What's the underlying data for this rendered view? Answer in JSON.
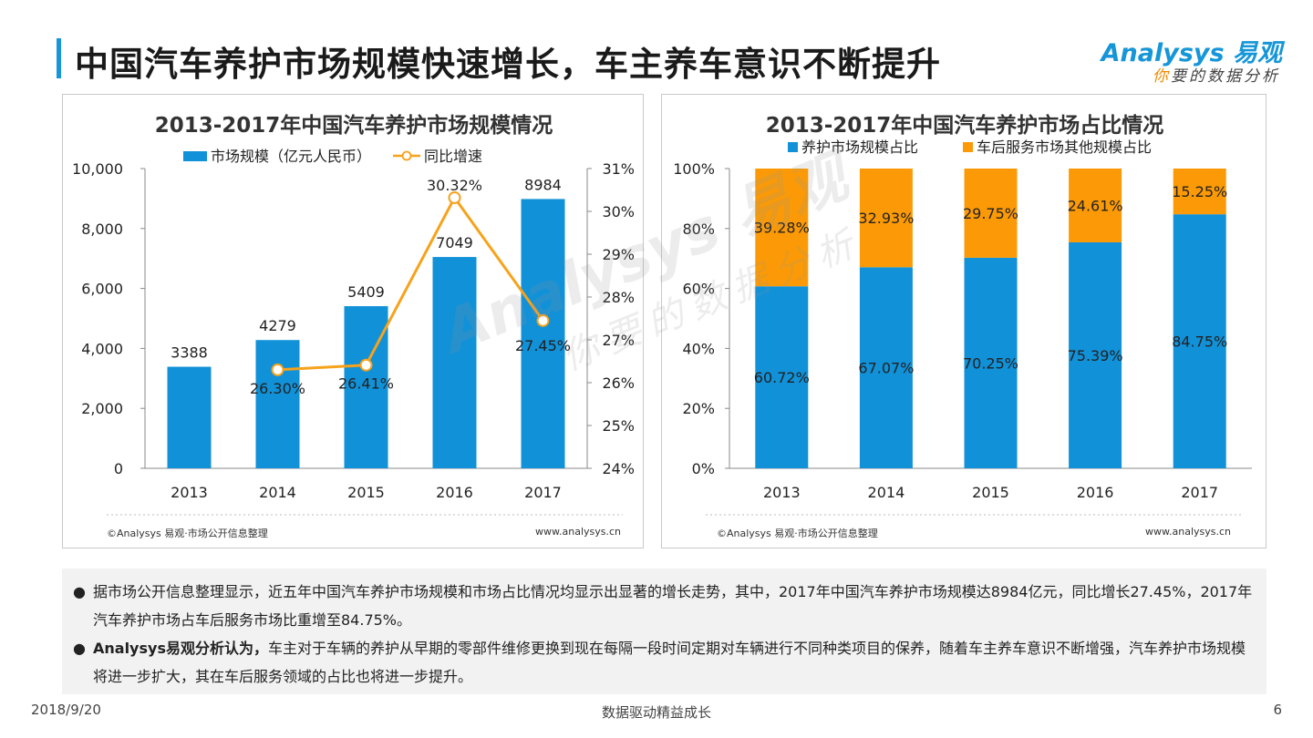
{
  "page": {
    "title": "中国汽车养护市场规模快速增长，车主养车意识不断提升",
    "logo_main": "Analysys 易观",
    "logo_sub_first": "你",
    "logo_sub_rest": "要的数据分析",
    "date": "2018/9/20",
    "footer_center": "数据驱动精益成长",
    "page_number": "6",
    "watermark_main": "Analysys 易观",
    "watermark_sub": "你要的数据分析"
  },
  "chart_data": [
    {
      "type": "bar",
      "title": "2013-2017年中国汽车养护市场规模情况",
      "categories": [
        "2013",
        "2014",
        "2015",
        "2016",
        "2017"
      ],
      "series": [
        {
          "name": "市场规模（亿元人民币）",
          "type": "bar",
          "axis": "left",
          "values": [
            3388,
            4279,
            5409,
            7049,
            8984
          ],
          "labels": [
            "3388",
            "4279",
            "5409",
            "7049",
            "8984"
          ],
          "color": "#1191d8"
        },
        {
          "name": "同比增速",
          "type": "line",
          "axis": "right",
          "x": [
            "2014",
            "2015",
            "2016",
            "2017"
          ],
          "values": [
            26.3,
            26.41,
            30.32,
            27.45
          ],
          "labels": [
            "26.30%",
            "26.41%",
            "30.32%",
            "27.45%"
          ],
          "color": "#f7a21b"
        }
      ],
      "ylim": [
        0,
        10000
      ],
      "yticks": [
        "0",
        "2,000",
        "4,000",
        "6,000",
        "8,000",
        "10,000"
      ],
      "y2lim": [
        24,
        31
      ],
      "y2ticks": [
        "24%",
        "25%",
        "26%",
        "27%",
        "28%",
        "29%",
        "30%",
        "31%"
      ],
      "legend_position": "top",
      "grid": false,
      "source": "©Analysys 易观·市场公开信息整理",
      "url": "www.analysys.cn"
    },
    {
      "type": "bar",
      "stacked": true,
      "title": "2013-2017年中国汽车养护市场占比情况",
      "categories": [
        "2013",
        "2014",
        "2015",
        "2016",
        "2017"
      ],
      "series": [
        {
          "name": "养护市场规模占比",
          "values": [
            60.72,
            67.07,
            70.25,
            75.39,
            84.75
          ],
          "labels": [
            "60.72%",
            "67.07%",
            "70.25%",
            "75.39%",
            "84.75%"
          ],
          "color": "#1191d8"
        },
        {
          "name": "车后服务市场其他规模占比",
          "values": [
            39.28,
            32.93,
            29.75,
            24.61,
            15.25
          ],
          "labels": [
            "39.28%",
            "32.93%",
            "29.75%",
            "24.61%",
            "15.25%"
          ],
          "color": "#fb9a06"
        }
      ],
      "ylim": [
        0,
        100
      ],
      "yticks": [
        "0%",
        "20%",
        "40%",
        "60%",
        "80%",
        "100%"
      ],
      "legend_position": "top",
      "grid": false,
      "source": "©Analysys 易观·市场公开信息整理",
      "url": "www.analysys.cn"
    }
  ],
  "bullets": [
    {
      "dot": "●",
      "bold": "",
      "text": "据市场公开信息整理显示，近五年中国汽车养护市场规模和市场占比情况均显示出显著的增长走势，其中，2017年中国汽车养护市场规模达8984亿元，同比增长27.45%，2017年汽车养护市场占车后服务市场比重增至84.75%。"
    },
    {
      "dot": "●",
      "bold": "Analysys易观分析认为，",
      "text": "车主对于车辆的养护从早期的零部件维修更换到现在每隔一段时间定期对车辆进行不同种类项目的保养，随着车主养车意识不断增强，汽车养护市场规模将进一步扩大，其在车后服务领域的占比也将进一步提升。"
    }
  ]
}
